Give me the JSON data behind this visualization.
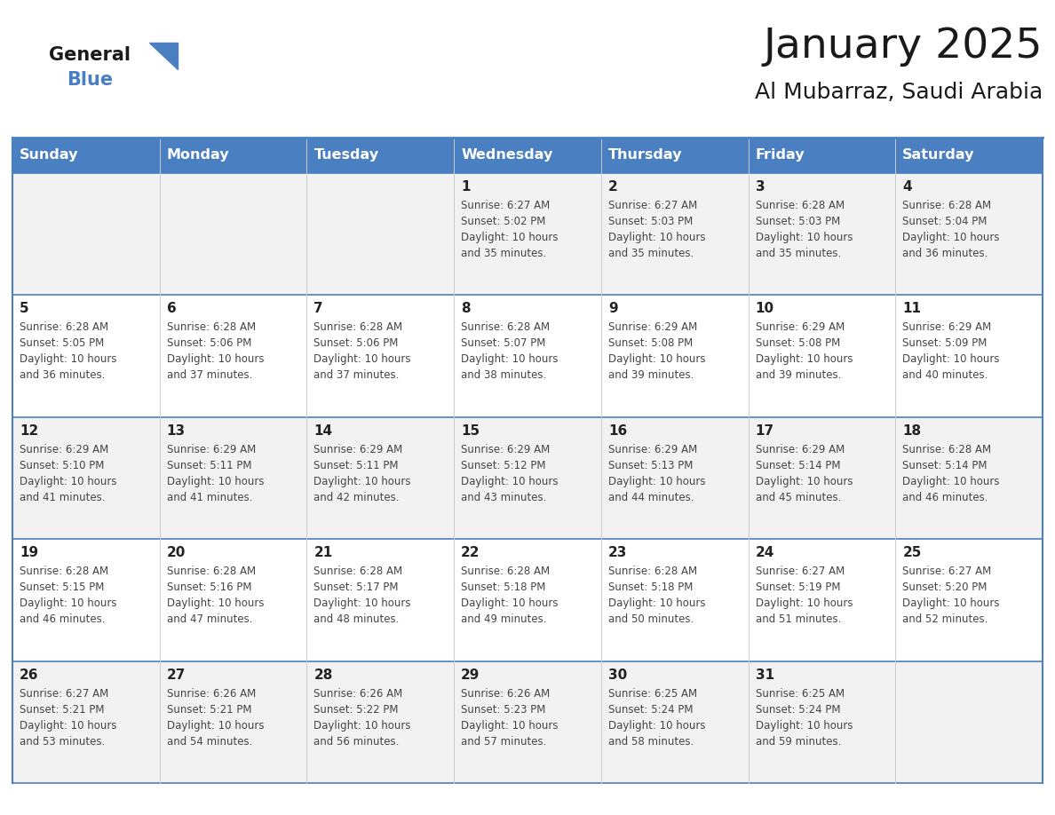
{
  "title": "January 2025",
  "subtitle": "Al Mubarraz, Saudi Arabia",
  "days_of_week": [
    "Sunday",
    "Monday",
    "Tuesday",
    "Wednesday",
    "Thursday",
    "Friday",
    "Saturday"
  ],
  "header_bg": "#4a7fc1",
  "header_text": "#FFFFFF",
  "row_bg_odd": "#f2f2f2",
  "row_bg_even": "#ffffff",
  "day_number_color": "#222222",
  "text_color": "#444444",
  "border_color": "#4a7fc1",
  "row_separator_color": "#4a7fc1",
  "col_separator_color": "#cccccc",
  "title_color": "#1a1a1a",
  "subtitle_color": "#1a1a1a",
  "logo_general_color": "#1a1a1a",
  "logo_blue_color": "#4a7fc1",
  "calendar_data": [
    [
      null,
      null,
      null,
      {
        "day": 1,
        "sunrise": "6:27 AM",
        "sunset": "5:02 PM",
        "daylight_min": "35"
      },
      {
        "day": 2,
        "sunrise": "6:27 AM",
        "sunset": "5:03 PM",
        "daylight_min": "35"
      },
      {
        "day": 3,
        "sunrise": "6:28 AM",
        "sunset": "5:03 PM",
        "daylight_min": "35"
      },
      {
        "day": 4,
        "sunrise": "6:28 AM",
        "sunset": "5:04 PM",
        "daylight_min": "36"
      }
    ],
    [
      {
        "day": 5,
        "sunrise": "6:28 AM",
        "sunset": "5:05 PM",
        "daylight_min": "36"
      },
      {
        "day": 6,
        "sunrise": "6:28 AM",
        "sunset": "5:06 PM",
        "daylight_min": "37"
      },
      {
        "day": 7,
        "sunrise": "6:28 AM",
        "sunset": "5:06 PM",
        "daylight_min": "37"
      },
      {
        "day": 8,
        "sunrise": "6:28 AM",
        "sunset": "5:07 PM",
        "daylight_min": "38"
      },
      {
        "day": 9,
        "sunrise": "6:29 AM",
        "sunset": "5:08 PM",
        "daylight_min": "39"
      },
      {
        "day": 10,
        "sunrise": "6:29 AM",
        "sunset": "5:08 PM",
        "daylight_min": "39"
      },
      {
        "day": 11,
        "sunrise": "6:29 AM",
        "sunset": "5:09 PM",
        "daylight_min": "40"
      }
    ],
    [
      {
        "day": 12,
        "sunrise": "6:29 AM",
        "sunset": "5:10 PM",
        "daylight_min": "41"
      },
      {
        "day": 13,
        "sunrise": "6:29 AM",
        "sunset": "5:11 PM",
        "daylight_min": "41"
      },
      {
        "day": 14,
        "sunrise": "6:29 AM",
        "sunset": "5:11 PM",
        "daylight_min": "42"
      },
      {
        "day": 15,
        "sunrise": "6:29 AM",
        "sunset": "5:12 PM",
        "daylight_min": "43"
      },
      {
        "day": 16,
        "sunrise": "6:29 AM",
        "sunset": "5:13 PM",
        "daylight_min": "44"
      },
      {
        "day": 17,
        "sunrise": "6:29 AM",
        "sunset": "5:14 PM",
        "daylight_min": "45"
      },
      {
        "day": 18,
        "sunrise": "6:28 AM",
        "sunset": "5:14 PM",
        "daylight_min": "46"
      }
    ],
    [
      {
        "day": 19,
        "sunrise": "6:28 AM",
        "sunset": "5:15 PM",
        "daylight_min": "46"
      },
      {
        "day": 20,
        "sunrise": "6:28 AM",
        "sunset": "5:16 PM",
        "daylight_min": "47"
      },
      {
        "day": 21,
        "sunrise": "6:28 AM",
        "sunset": "5:17 PM",
        "daylight_min": "48"
      },
      {
        "day": 22,
        "sunrise": "6:28 AM",
        "sunset": "5:18 PM",
        "daylight_min": "49"
      },
      {
        "day": 23,
        "sunrise": "6:28 AM",
        "sunset": "5:18 PM",
        "daylight_min": "50"
      },
      {
        "day": 24,
        "sunrise": "6:27 AM",
        "sunset": "5:19 PM",
        "daylight_min": "51"
      },
      {
        "day": 25,
        "sunrise": "6:27 AM",
        "sunset": "5:20 PM",
        "daylight_min": "52"
      }
    ],
    [
      {
        "day": 26,
        "sunrise": "6:27 AM",
        "sunset": "5:21 PM",
        "daylight_min": "53"
      },
      {
        "day": 27,
        "sunrise": "6:26 AM",
        "sunset": "5:21 PM",
        "daylight_min": "54"
      },
      {
        "day": 28,
        "sunrise": "6:26 AM",
        "sunset": "5:22 PM",
        "daylight_min": "56"
      },
      {
        "day": 29,
        "sunrise": "6:26 AM",
        "sunset": "5:23 PM",
        "daylight_min": "57"
      },
      {
        "day": 30,
        "sunrise": "6:25 AM",
        "sunset": "5:24 PM",
        "daylight_min": "58"
      },
      {
        "day": 31,
        "sunrise": "6:25 AM",
        "sunset": "5:24 PM",
        "daylight_min": "59"
      },
      null
    ]
  ]
}
